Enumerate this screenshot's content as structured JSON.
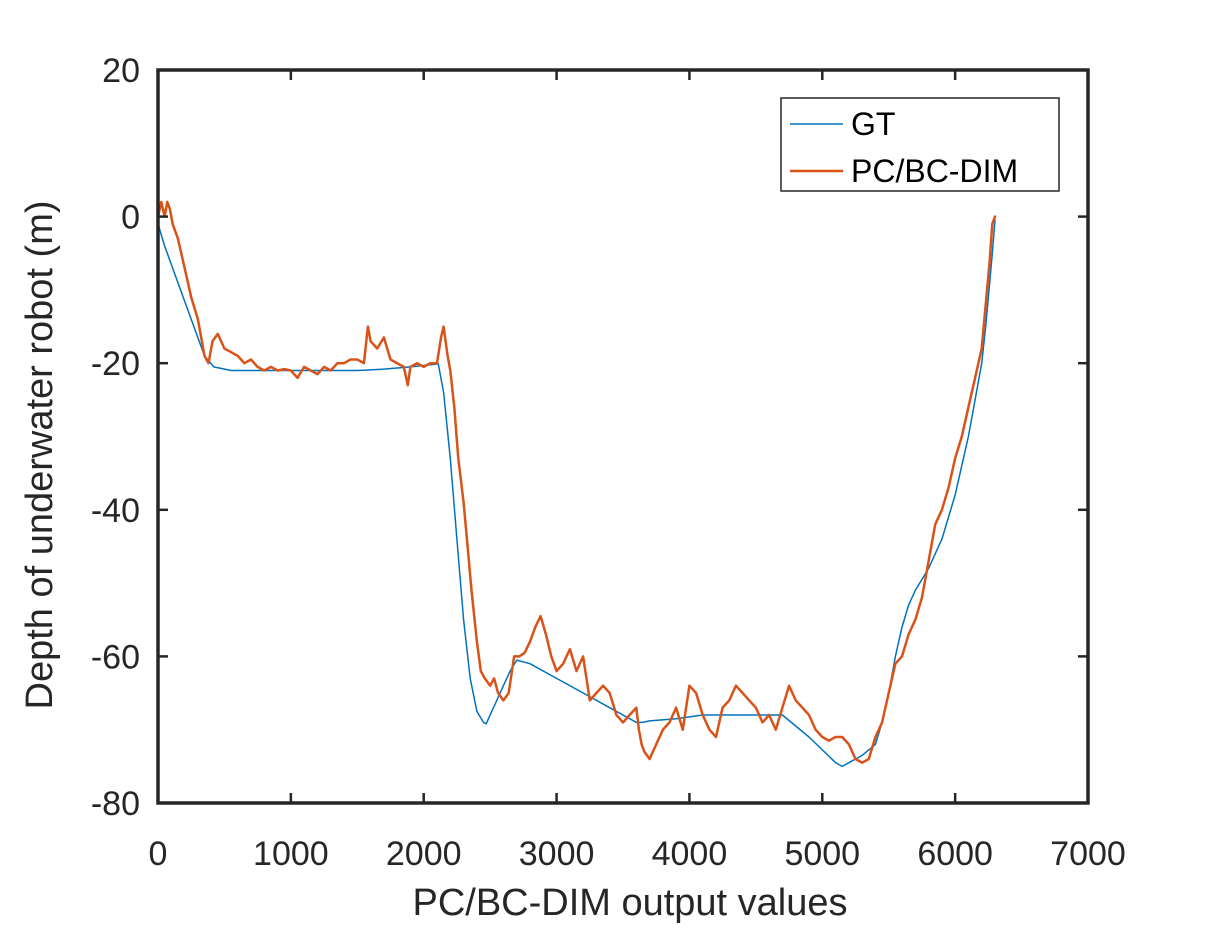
{
  "chart_data": {
    "type": "line",
    "title": "",
    "xlabel": "PC/BC-DIM output values",
    "ylabel": "Depth of underwater robot (m)",
    "xlim": [
      0,
      7000
    ],
    "ylim": [
      -80,
      20
    ],
    "xticks": [
      0,
      1000,
      2000,
      3000,
      4000,
      5000,
      6000,
      7000
    ],
    "yticks": [
      20,
      0,
      -20,
      -40,
      -60,
      -80
    ],
    "xtick_labels": [
      "0",
      "1000",
      "2000",
      "3000",
      "4000",
      "5000",
      "6000",
      "7000"
    ],
    "ytick_labels": [
      "20",
      "0",
      "-20",
      "-40",
      "-60",
      "-80"
    ],
    "grid": false,
    "legend_position": "top-right",
    "series": [
      {
        "name": "GT",
        "color": "#0072BD",
        "x": [
          0,
          50,
          150,
          250,
          350,
          420,
          550,
          700,
          900,
          1100,
          1300,
          1500,
          1700,
          1900,
          2050,
          2110,
          2150,
          2200,
          2250,
          2300,
          2350,
          2400,
          2450,
          2470,
          2500,
          2550,
          2600,
          2650,
          2700,
          2800,
          3000,
          3200,
          3400,
          3600,
          3650,
          3700,
          3900,
          4100,
          4300,
          4500,
          4700,
          4900,
          5100,
          5150,
          5200,
          5300,
          5400,
          5450,
          5500,
          5550,
          5600,
          5650,
          5700,
          5800,
          5900,
          6000,
          6100,
          6150,
          6200,
          6230,
          6260,
          6280,
          6300
        ],
        "y": [
          -1,
          -4,
          -9,
          -14,
          -19,
          -20.5,
          -21,
          -21,
          -21,
          -21,
          -21,
          -21,
          -20.8,
          -20.5,
          -20.2,
          -20.1,
          -24,
          -33,
          -44,
          -55,
          -63,
          -67.5,
          -69,
          -69.2,
          -68,
          -66,
          -64,
          -62,
          -60.5,
          -61,
          -63,
          -65,
          -67,
          -69,
          -69,
          -68.8,
          -68.5,
          -68,
          -68,
          -68,
          -68,
          -71,
          -74.5,
          -75,
          -74.5,
          -73.5,
          -72,
          -69,
          -65,
          -60,
          -56,
          -53,
          -51,
          -48,
          -44,
          -38,
          -30,
          -25,
          -20,
          -15,
          -9,
          -5,
          -0.5
        ]
      },
      {
        "name": "PC/BC-DIM",
        "color": "#D95319",
        "x": [
          0,
          25,
          50,
          70,
          90,
          110,
          150,
          200,
          250,
          300,
          350,
          380,
          410,
          450,
          500,
          550,
          600,
          650,
          700,
          750,
          800,
          850,
          900,
          950,
          1000,
          1050,
          1100,
          1150,
          1200,
          1250,
          1300,
          1350,
          1400,
          1450,
          1500,
          1550,
          1580,
          1600,
          1650,
          1700,
          1750,
          1800,
          1850,
          1880,
          1900,
          1950,
          2000,
          2050,
          2100,
          2130,
          2150,
          2180,
          2200,
          2230,
          2260,
          2300,
          2330,
          2360,
          2400,
          2430,
          2460,
          2500,
          2530,
          2560,
          2600,
          2640,
          2680,
          2720,
          2760,
          2800,
          2840,
          2880,
          2920,
          2960,
          3000,
          3050,
          3100,
          3150,
          3200,
          3250,
          3300,
          3350,
          3400,
          3450,
          3500,
          3550,
          3600,
          3620,
          3640,
          3660,
          3700,
          3750,
          3800,
          3850,
          3900,
          3950,
          4000,
          4050,
          4100,
          4150,
          4200,
          4250,
          4300,
          4350,
          4400,
          4450,
          4500,
          4550,
          4600,
          4650,
          4700,
          4750,
          4800,
          4850,
          4900,
          4950,
          5000,
          5050,
          5100,
          5150,
          5200,
          5250,
          5300,
          5350,
          5400,
          5450,
          5500,
          5550,
          5600,
          5650,
          5700,
          5750,
          5800,
          5850,
          5900,
          5950,
          6000,
          6050,
          6100,
          6150,
          6200,
          6230,
          6260,
          6280,
          6300
        ],
        "y": [
          0,
          2,
          0,
          2,
          1,
          -1,
          -3,
          -7,
          -11,
          -14,
          -19,
          -20,
          -17,
          -16,
          -18,
          -18.5,
          -19,
          -20,
          -19.5,
          -20.5,
          -21,
          -20.5,
          -21,
          -20.8,
          -21,
          -22,
          -20.5,
          -21,
          -21.5,
          -20.5,
          -21,
          -20,
          -20,
          -19.5,
          -19.5,
          -20,
          -15,
          -17,
          -18,
          -16.5,
          -19.5,
          -20,
          -20.5,
          -23,
          -20.5,
          -20,
          -20.5,
          -20,
          -20,
          -16.5,
          -15,
          -19,
          -21,
          -26,
          -33,
          -39,
          -45,
          -51,
          -58,
          -62,
          -63,
          -64,
          -63,
          -65,
          -66,
          -65,
          -60,
          -60,
          -59.5,
          -58,
          -56,
          -54.5,
          -57,
          -60,
          -62,
          -61,
          -59,
          -62,
          -60,
          -66,
          -65,
          -64,
          -65,
          -68,
          -69,
          -68,
          -67,
          -70,
          -72,
          -73,
          -74,
          -72,
          -70,
          -69,
          -67,
          -70,
          -64,
          -65,
          -68,
          -70,
          -71,
          -67,
          -66,
          -64,
          -65,
          -66,
          -67,
          -69,
          -68,
          -70,
          -67,
          -64,
          -66,
          -67,
          -68,
          -70,
          -71,
          -71.5,
          -71,
          -71,
          -72,
          -74,
          -74.5,
          -74,
          -71,
          -69,
          -65,
          -61,
          -60,
          -57,
          -55,
          -52,
          -47,
          -42,
          -40,
          -37,
          -33,
          -30,
          -26,
          -22,
          -18,
          -12,
          -6,
          -1,
          0
        ]
      }
    ]
  }
}
